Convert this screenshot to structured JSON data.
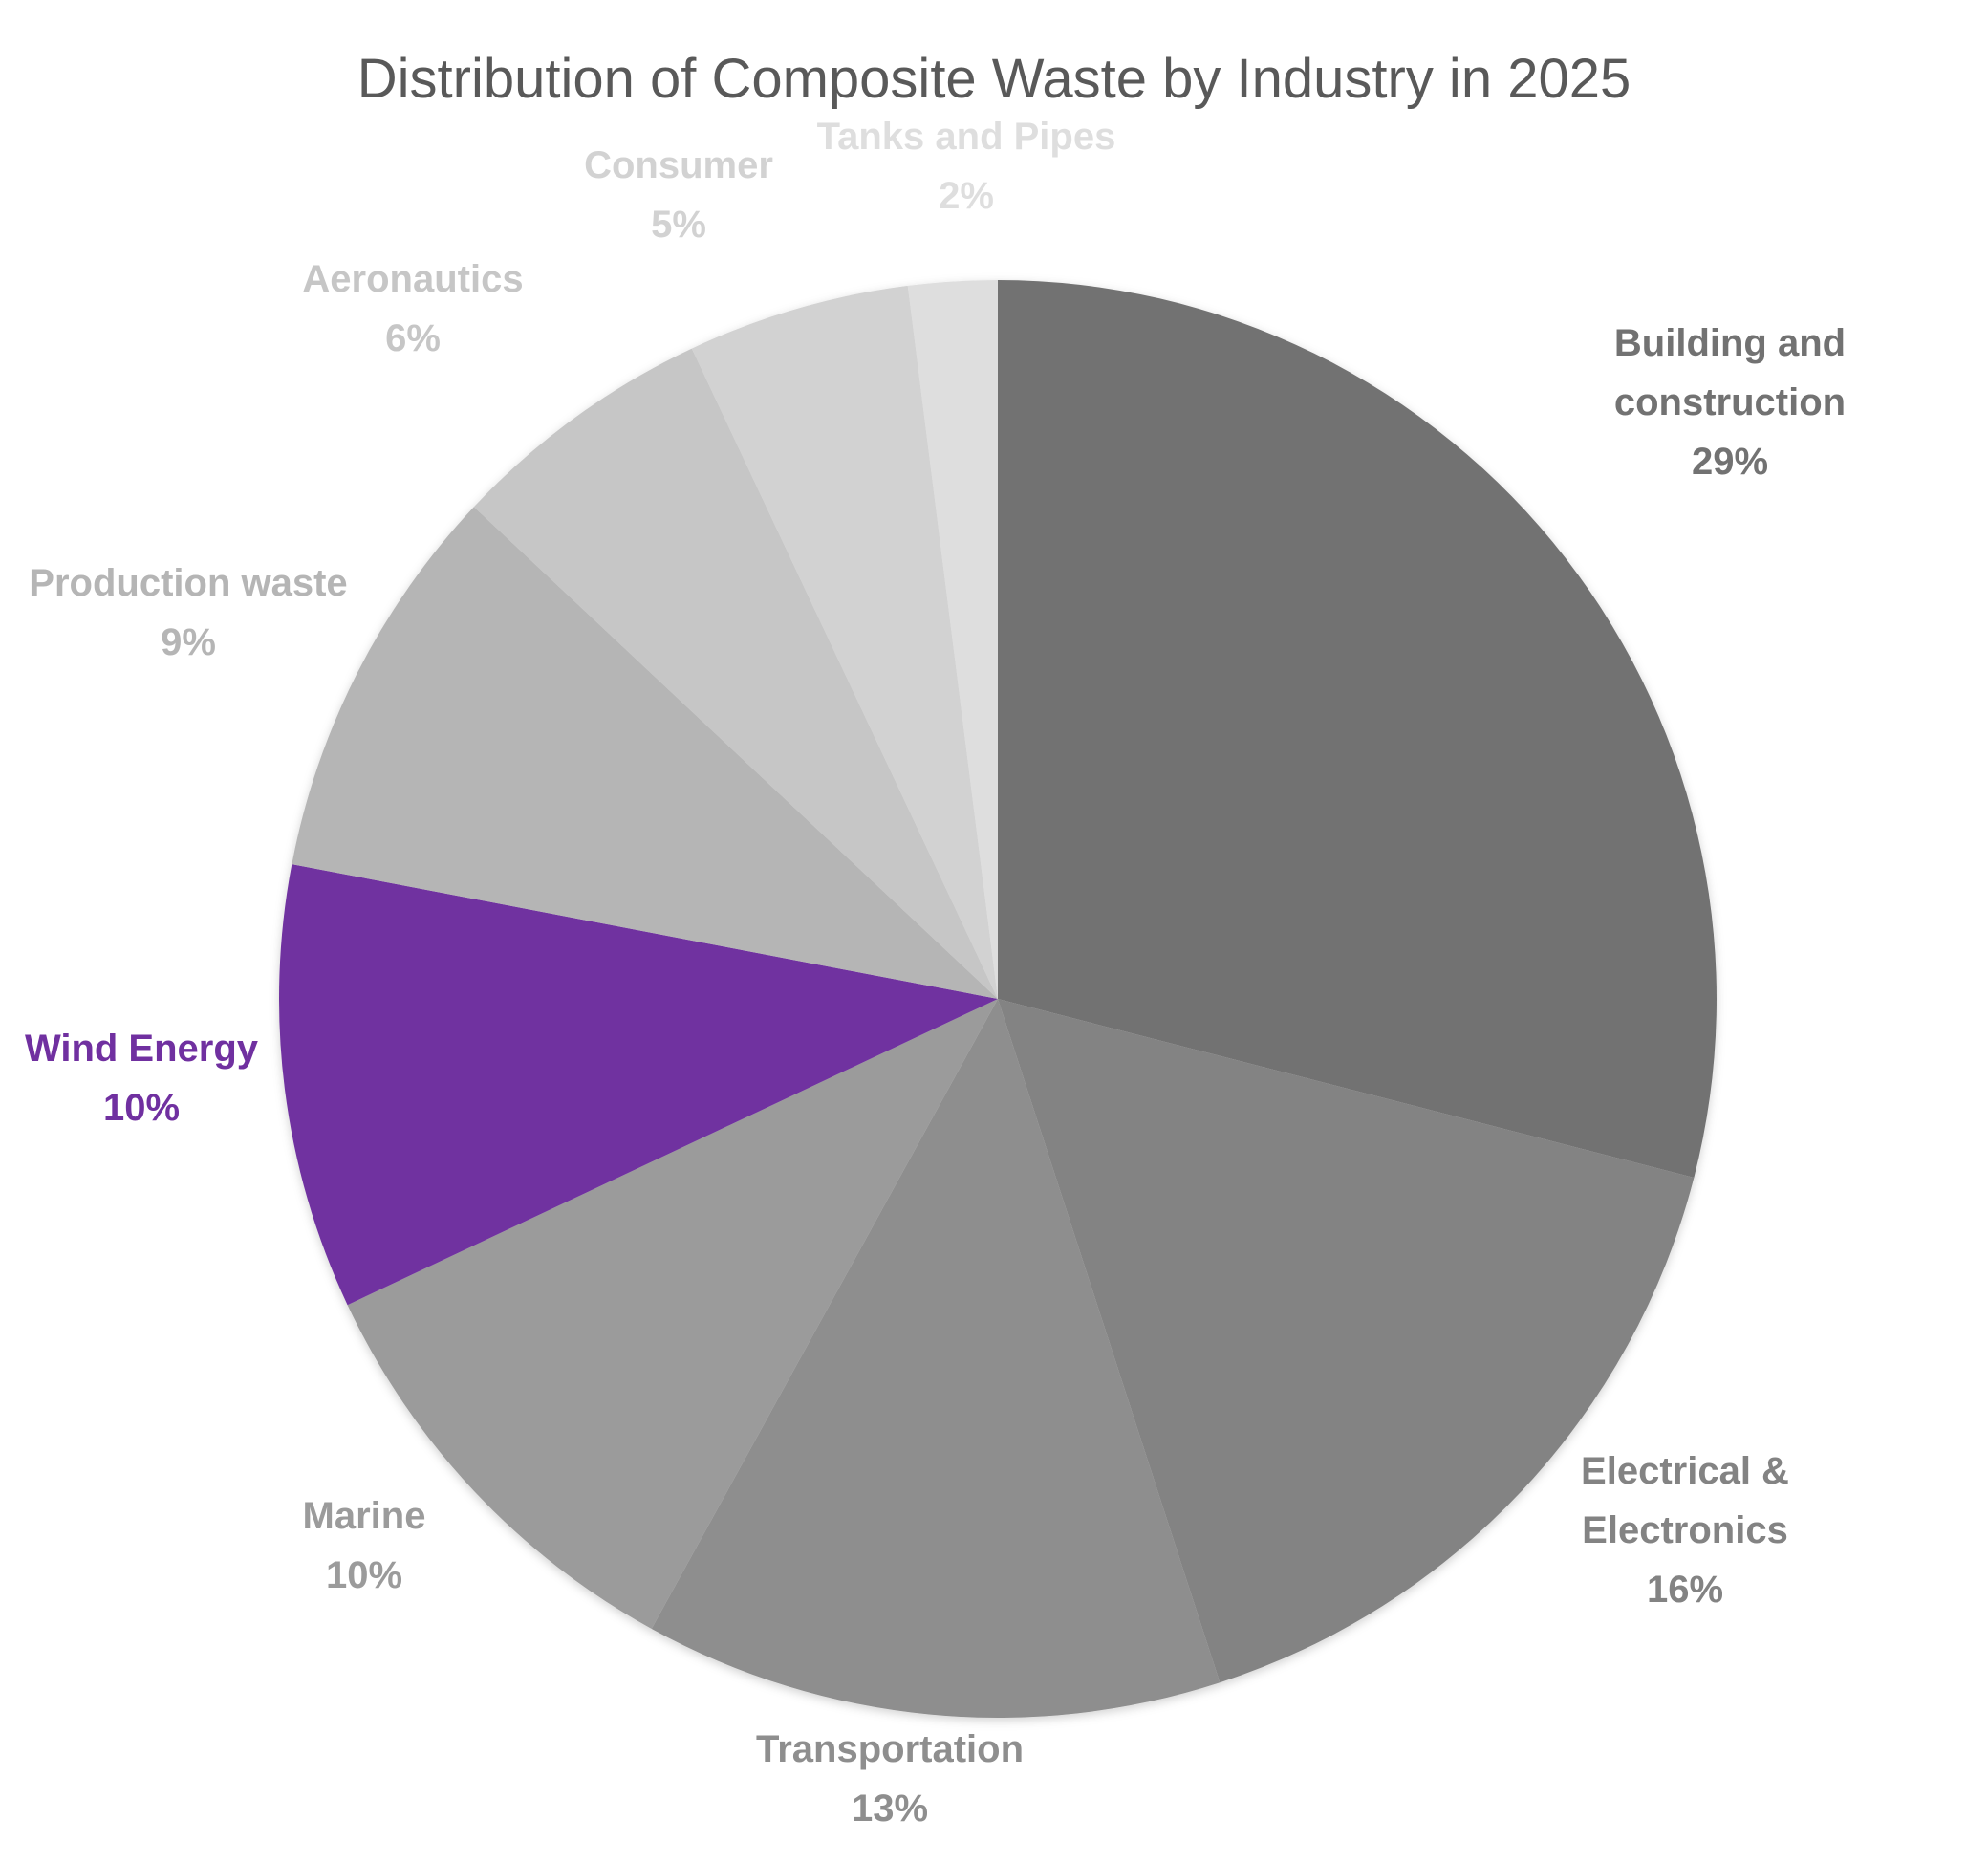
{
  "chart_data": {
    "type": "pie",
    "title": "Distribution of Composite Waste by Industry in 2025",
    "start_angle": "12 o'clock",
    "direction": "clockwise",
    "slices": [
      {
        "label_lines": [
          "Building and",
          "construction"
        ],
        "value": 29,
        "value_label": "29%",
        "color": "#727272",
        "label_color": "#727272"
      },
      {
        "label_lines": [
          "Electrical &",
          "Electronics"
        ],
        "value": 16,
        "value_label": "16%",
        "color": "#838383",
        "label_color": "#838383"
      },
      {
        "label_lines": [
          "Transportation"
        ],
        "value": 13,
        "value_label": "13%",
        "color": "#8e8e8e",
        "label_color": "#8e8e8e"
      },
      {
        "label_lines": [
          "Marine"
        ],
        "value": 10,
        "value_label": "10%",
        "color": "#9b9b9b",
        "label_color": "#9b9b9b"
      },
      {
        "label_lines": [
          "Wind Energy"
        ],
        "value": 10,
        "value_label": "10%",
        "color": "#7030a0",
        "label_color": "#7030a0"
      },
      {
        "label_lines": [
          "Production waste"
        ],
        "value": 9,
        "value_label": "9%",
        "color": "#b5b5b5",
        "label_color": "#b5b5b5"
      },
      {
        "label_lines": [
          "Aeronautics"
        ],
        "value": 6,
        "value_label": "6%",
        "color": "#c6c6c6",
        "label_color": "#c6c6c6"
      },
      {
        "label_lines": [
          "Consumer"
        ],
        "value": 5,
        "value_label": "5%",
        "color": "#d2d2d2",
        "label_color": "#d2d2d2"
      },
      {
        "label_lines": [
          "Tanks and Pipes"
        ],
        "value": 2,
        "value_label": "2%",
        "color": "#dedede",
        "label_color": "#dedede"
      }
    ]
  }
}
